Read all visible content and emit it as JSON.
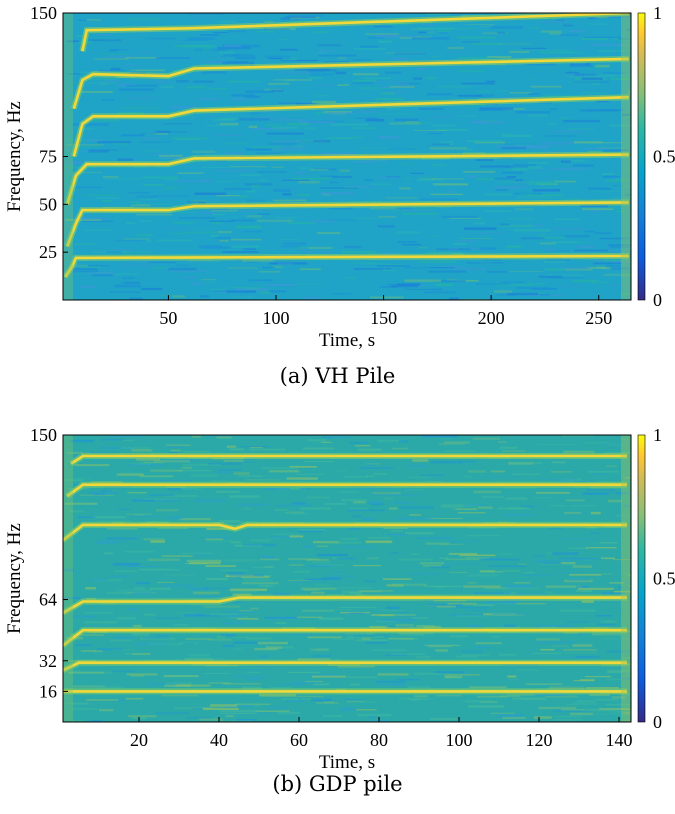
{
  "chart_data": [
    {
      "type": "heatmap",
      "caption": "(a) VH Pile",
      "xlabel": "Time, s",
      "ylabel": "Frequency, Hz",
      "xlim": [
        1,
        265
      ],
      "ylim": [
        0,
        150
      ],
      "xticks": [
        50,
        100,
        150,
        200,
        250
      ],
      "yticks": [
        25,
        50,
        75,
        150
      ],
      "colorbar": {
        "ticks": [
          0,
          0.5,
          1
        ],
        "labels": [
          "0",
          "0.5",
          "1"
        ],
        "range": [
          0,
          1
        ],
        "colormap": "parula"
      },
      "ridges": [
        {
          "points": [
            [
              2,
              12
            ],
            [
              5,
              17
            ],
            [
              7,
              22
            ],
            [
              264,
              23
            ]
          ]
        },
        {
          "points": [
            [
              3,
              28
            ],
            [
              7,
              40
            ],
            [
              10,
              47
            ],
            [
              50,
              47
            ],
            [
              62,
              49
            ],
            [
              264,
              51
            ]
          ]
        },
        {
          "points": [
            [
              3,
              50
            ],
            [
              7,
              65
            ],
            [
              12,
              71
            ],
            [
              50,
              71
            ],
            [
              62,
              74
            ],
            [
              264,
              76
            ]
          ]
        },
        {
          "points": [
            [
              6,
              75
            ],
            [
              10,
              92
            ],
            [
              15,
              96
            ],
            [
              50,
              96
            ],
            [
              62,
              99
            ],
            [
              264,
              106
            ]
          ]
        },
        {
          "points": [
            [
              6,
              100
            ],
            [
              10,
              115
            ],
            [
              15,
              118
            ],
            [
              50,
              117
            ],
            [
              62,
              121
            ],
            [
              264,
              126
            ]
          ]
        },
        {
          "points": [
            [
              10,
              130
            ],
            [
              12,
              141
            ],
            [
              60,
              142
            ],
            [
              264,
              150
            ]
          ]
        }
      ],
      "background": "#1fa3c6"
    },
    {
      "type": "heatmap",
      "caption": "(b) GDP pile",
      "xlabel": "Time, s",
      "ylabel": "Frequency, Hz",
      "xlim": [
        1,
        143
      ],
      "ylim": [
        0,
        150
      ],
      "xticks": [
        20,
        40,
        60,
        80,
        100,
        120,
        140
      ],
      "yticks": [
        16,
        32,
        64,
        150
      ],
      "colorbar": {
        "ticks": [
          0,
          0.5,
          1
        ],
        "labels": [
          "0",
          "0.5",
          "1"
        ],
        "range": [
          0,
          1
        ],
        "colormap": "parula"
      },
      "ridges": [
        {
          "points": [
            [
              1,
              16
            ],
            [
              142,
              16
            ]
          ]
        },
        {
          "points": [
            [
              1,
              27
            ],
            [
              5,
              31
            ],
            [
              142,
              31
            ]
          ]
        },
        {
          "points": [
            [
              1,
              40
            ],
            [
              6,
              48
            ],
            [
              142,
              48
            ]
          ]
        },
        {
          "points": [
            [
              1,
              57
            ],
            [
              6,
              63
            ],
            [
              40,
              63
            ],
            [
              45,
              65
            ],
            [
              142,
              65
            ]
          ]
        },
        {
          "points": [
            [
              1,
              95
            ],
            [
              6,
              103
            ],
            [
              40,
              103
            ],
            [
              44,
              101
            ],
            [
              47,
              103
            ],
            [
              142,
              103
            ]
          ]
        },
        {
          "points": [
            [
              2,
              118
            ],
            [
              6,
              124
            ],
            [
              142,
              124
            ]
          ]
        },
        {
          "points": [
            [
              3,
              135
            ],
            [
              6,
              139
            ],
            [
              142,
              139
            ]
          ]
        }
      ],
      "background": "#2aa9a8"
    }
  ]
}
